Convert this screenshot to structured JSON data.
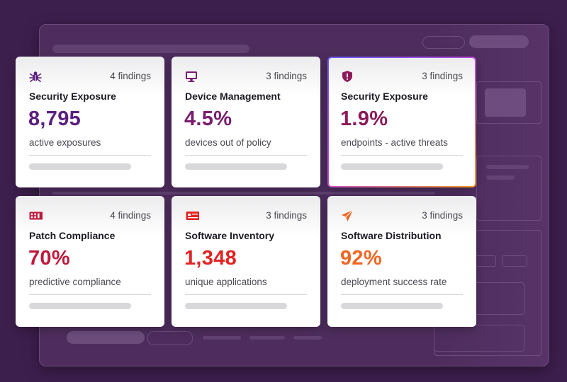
{
  "colors": {
    "background": "#3d1f4d",
    "purple": "#5b1f80",
    "magenta": "#8c1a5a",
    "crimson": "#b01a3a",
    "red": "#d62828",
    "red2": "#e02424",
    "orange": "#f26522"
  },
  "cards": [
    {
      "icon": "bug-icon",
      "findings": "4 findings",
      "title": "Security Exposure",
      "value": "8,795",
      "subtitle": "active exposures",
      "color": "#5b1f80"
    },
    {
      "icon": "monitor-icon",
      "findings": "3 findings",
      "title": "Device Management",
      "value": "4.5%",
      "subtitle": "devices out of policy",
      "color": "#7a1e6e"
    },
    {
      "icon": "shield-alert-icon",
      "findings": "3 findings",
      "title": "Security Exposure",
      "value": "1.9%",
      "subtitle": "endpoints - active threats",
      "color": "#8c1a5a"
    },
    {
      "icon": "patch-grid-icon",
      "findings": "4 findings",
      "title": "Patch Compliance",
      "value": "70%",
      "subtitle": "predictive compliance",
      "color": "#c0183a"
    },
    {
      "icon": "app-card-icon",
      "findings": "3 findings",
      "title": "Software Inventory",
      "value": "1,348",
      "subtitle": "unique applications",
      "color": "#e02424"
    },
    {
      "icon": "paper-plane-icon",
      "findings": "3 findings",
      "title": "Software Distribution",
      "value": "92%",
      "subtitle": "deployment success rate",
      "color": "#f26522"
    }
  ]
}
